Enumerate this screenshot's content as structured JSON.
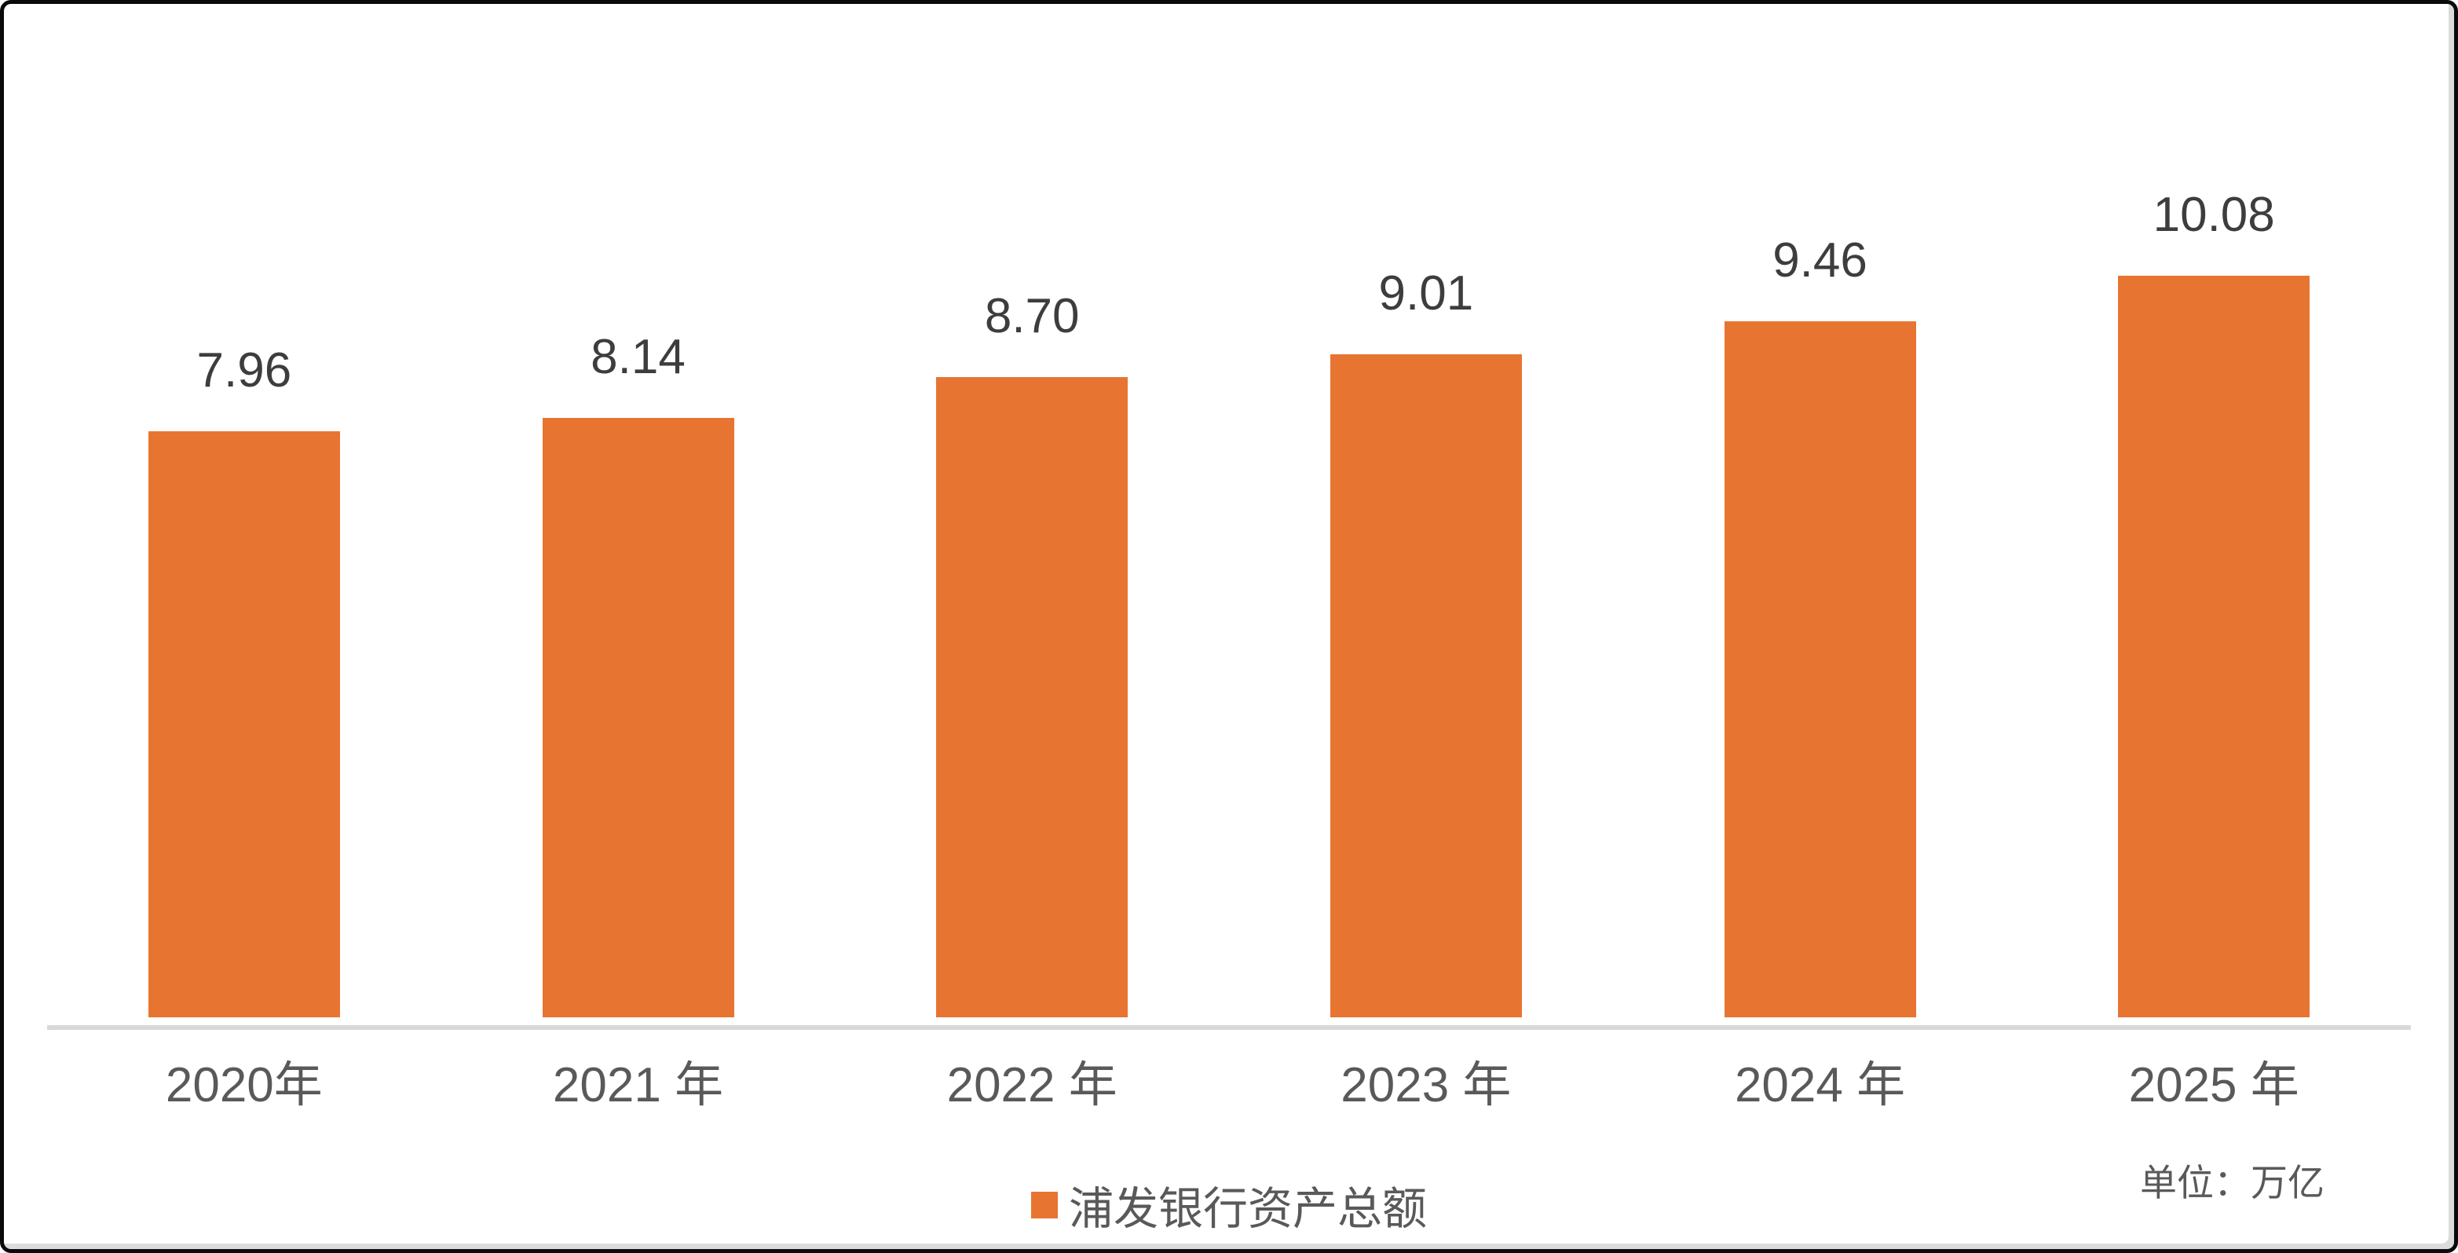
{
  "chart_data": {
    "type": "bar",
    "categories": [
      "2020年",
      "2021 年",
      "2022 年",
      "2023 年",
      "2024 年",
      "2025 年"
    ],
    "values": [
      7.96,
      8.14,
      8.7,
      9.01,
      9.46,
      10.08
    ],
    "value_labels": [
      "7.96",
      "8.14",
      "8.70",
      "9.01",
      "9.46",
      "10.08"
    ],
    "title": "",
    "xlabel": "",
    "ylabel": "",
    "ylim": [
      0,
      10.7
    ],
    "grid": false,
    "y_axis_visible": false,
    "legend_position": "bottom-center",
    "series": [
      {
        "name": "浦发银行资产总额",
        "values": [
          7.96,
          8.14,
          8.7,
          9.01,
          9.46,
          10.08
        ]
      }
    ]
  },
  "legend": {
    "label": "浦发银行资产总额"
  },
  "footnote": {
    "unit_label": "单位：万亿"
  },
  "colors": {
    "bar_fill": "#e87431",
    "axis_line": "#d9d9d9",
    "value_label": "#3d3d3d",
    "tick_label": "#595959",
    "legend_text": "#595959",
    "frame_border": "#0a0a0a",
    "background": "#ffffff"
  }
}
